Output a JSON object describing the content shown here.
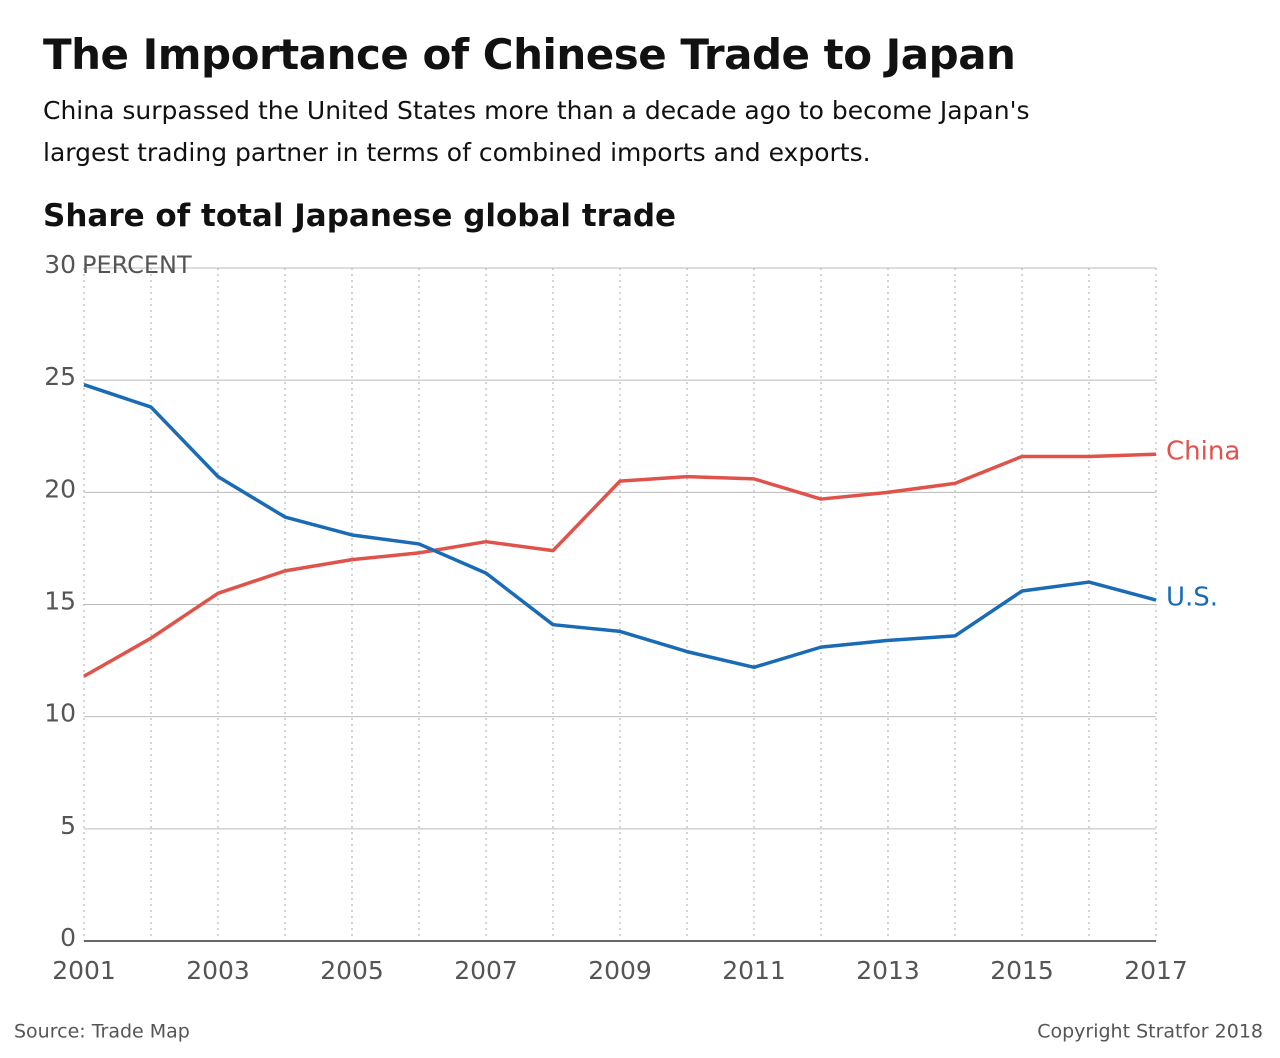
{
  "chart_data": {
    "type": "line",
    "title": "The Importance of Chinese Trade to Japan",
    "subtitle": "China surpassed the United States more than a decade ago to become Japan's largest trading partner in terms of combined imports and exports.",
    "chart_title": "Share of total Japanese global trade",
    "y_label": "PERCENT",
    "x": [
      2001,
      2002,
      2003,
      2004,
      2005,
      2006,
      2007,
      2008,
      2009,
      2010,
      2011,
      2012,
      2013,
      2014,
      2015,
      2016,
      2017
    ],
    "series": [
      {
        "name": "China",
        "color": "#e0534a",
        "values": [
          11.8,
          13.5,
          15.5,
          16.5,
          17.0,
          17.3,
          17.8,
          17.4,
          20.5,
          20.7,
          20.6,
          19.7,
          20.0,
          20.4,
          21.6,
          21.6,
          21.7
        ]
      },
      {
        "name": "U.S.",
        "color": "#1a6bb5",
        "values": [
          24.8,
          23.8,
          20.7,
          18.9,
          18.1,
          17.7,
          16.4,
          14.1,
          13.8,
          12.9,
          12.2,
          13.1,
          13.4,
          13.6,
          15.6,
          16.0,
          15.2
        ]
      }
    ],
    "xlim": [
      2001,
      2017
    ],
    "xticks": [
      2001,
      2003,
      2005,
      2007,
      2009,
      2011,
      2013,
      2015,
      2017
    ],
    "ylim": [
      0,
      30
    ],
    "yticks": [
      0,
      5,
      10,
      15,
      20,
      25,
      30
    ],
    "grid": true,
    "source": "Source: Trade Map",
    "copyright": "Copyright Stratfor 2018"
  }
}
